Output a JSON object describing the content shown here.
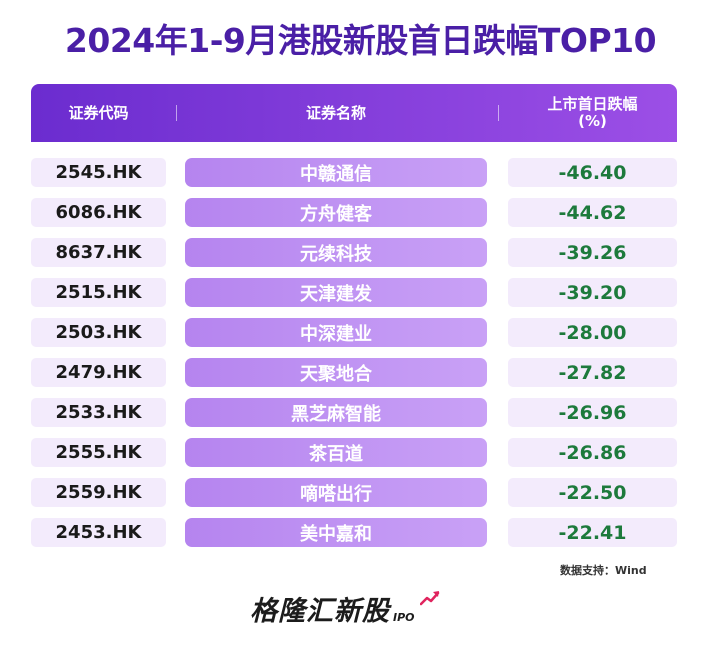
{
  "chart_data": {
    "type": "table",
    "title": "2024年1-9月港股新股首日跌幅TOP10",
    "columns": [
      "证券代码",
      "证券名称",
      "上市首日跌幅\n(%)"
    ],
    "rows": [
      {
        "code": "2545.HK",
        "name": "中赣通信",
        "value": "-46.40"
      },
      {
        "code": "6086.HK",
        "name": "方舟健客",
        "value": "-44.62"
      },
      {
        "code": "8637.HK",
        "name": "元续科技",
        "value": "-39.26"
      },
      {
        "code": "2515.HK",
        "name": "天津建发",
        "value": "-39.20"
      },
      {
        "code": "2503.HK",
        "name": "中深建业",
        "value": "-28.00"
      },
      {
        "code": "2479.HK",
        "name": "天聚地合",
        "value": "-27.82"
      },
      {
        "code": "2533.HK",
        "name": "黑芝麻智能",
        "value": "-26.96"
      },
      {
        "code": "2555.HK",
        "name": "茶百道",
        "value": "-26.86"
      },
      {
        "code": "2559.HK",
        "name": "嘀嗒出行",
        "value": "-22.50"
      },
      {
        "code": "2453.HK",
        "name": "美中嘉和",
        "value": "-22.41"
      }
    ],
    "source": "数据支持：Wind"
  },
  "brand": {
    "name": "格隆汇新股",
    "sub": "IPO"
  },
  "colors": {
    "title": "#4a1fa6",
    "header": "#7a35d8",
    "name_bg": "#b584ef",
    "cell_bg": "#f3ebfc",
    "value_text": "#1d7a3c",
    "arrow": "#e0245e"
  }
}
